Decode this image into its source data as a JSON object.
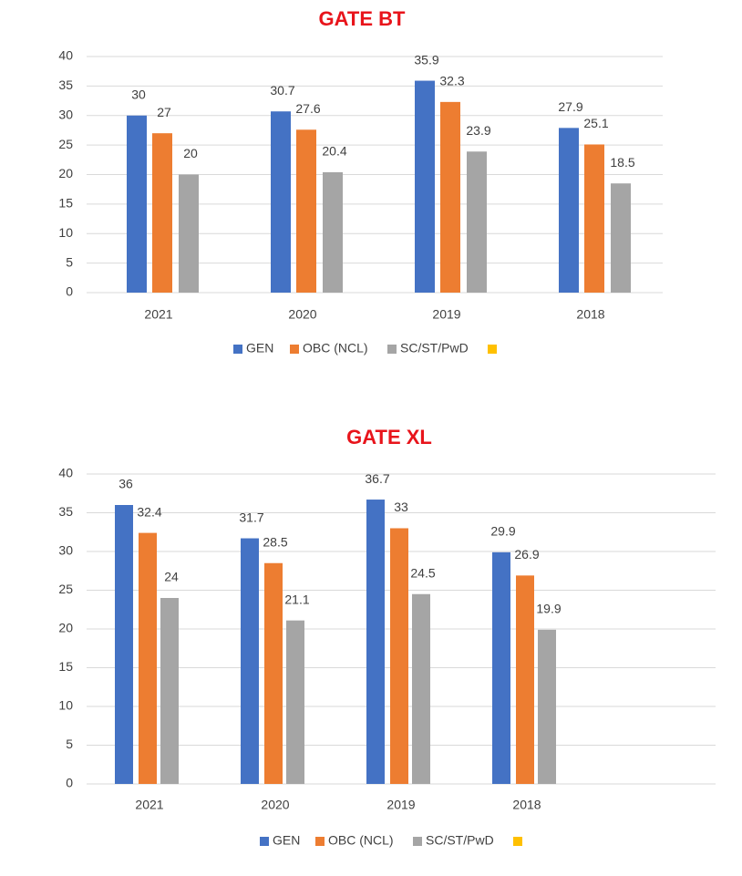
{
  "chart_data": [
    {
      "type": "bar",
      "title": "GATE BT",
      "categories": [
        "2021",
        "2020",
        "2019",
        "2018"
      ],
      "series": [
        {
          "name": "GEN",
          "color": "#4472c4",
          "values": [
            30,
            30.7,
            35.9,
            27.9
          ]
        },
        {
          "name": "OBC (NCL)",
          "color": "#ed7d31",
          "values": [
            27,
            27.6,
            32.3,
            25.1
          ]
        },
        {
          "name": "SC/ST/PwD",
          "color": "#a5a5a5",
          "values": [
            20,
            20.4,
            23.9,
            18.5
          ]
        }
      ],
      "ylim": [
        0,
        40
      ],
      "yticks": [
        0,
        5,
        10,
        15,
        20,
        25,
        30,
        35,
        40
      ],
      "grid": true,
      "legend": "bottom"
    },
    {
      "type": "bar",
      "title": "GATE XL",
      "categories": [
        "2021",
        "2020",
        "2019",
        "2018"
      ],
      "series": [
        {
          "name": "GEN",
          "color": "#4472c4",
          "values": [
            36,
            31.7,
            36.7,
            29.9
          ]
        },
        {
          "name": "OBC (NCL)",
          "color": "#ed7d31",
          "values": [
            32.4,
            28.5,
            33,
            26.9
          ]
        },
        {
          "name": "SC/ST/PwD",
          "color": "#a5a5a5",
          "values": [
            24,
            21.1,
            24.5,
            19.9
          ]
        }
      ],
      "ylim": [
        0,
        40
      ],
      "yticks": [
        0,
        5,
        10,
        15,
        20,
        25,
        30,
        35,
        40
      ],
      "grid": true,
      "legend": "bottom"
    }
  ]
}
